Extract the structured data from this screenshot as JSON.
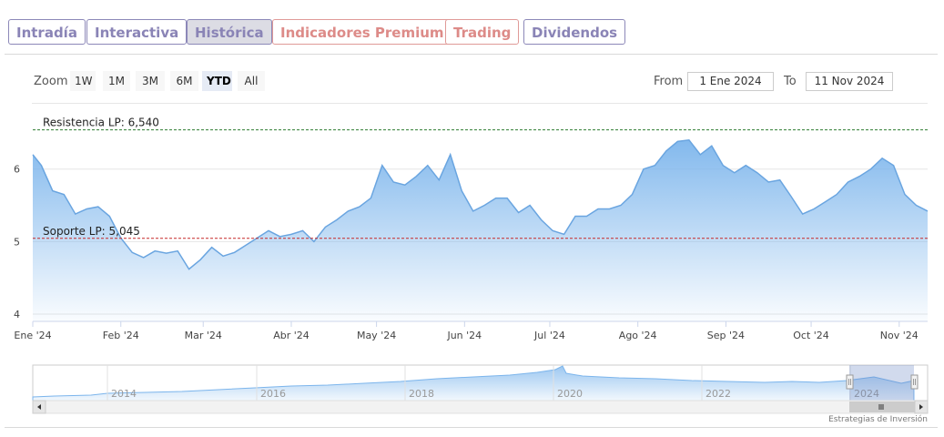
{
  "tabs": [
    {
      "label": "Intradía",
      "style": "normal"
    },
    {
      "label": "Interactiva",
      "style": "normal"
    },
    {
      "label": "Histórica",
      "style": "active"
    },
    {
      "label": "Indicadores Premium",
      "style": "premium"
    },
    {
      "label": "Trading",
      "style": "premium"
    },
    {
      "label": "Dividendos",
      "style": "normal"
    }
  ],
  "zoom": {
    "label": "Zoom",
    "buttons": [
      "1W",
      "1M",
      "3M",
      "6M",
      "YTD",
      "All"
    ],
    "selected": "YTD"
  },
  "range": {
    "from_label": "From",
    "from_value": "1 Ene 2024",
    "to_label": "To",
    "to_value": "11 Nov 2024"
  },
  "colors": {
    "accent": "#7cb5ec",
    "tab_text": "#8a84b6",
    "tab_premium": "#dd8b88",
    "resistance_line": "#2e7d32",
    "support_line": "#c62828"
  },
  "chart_data": {
    "type": "area",
    "ylim": [
      3.9,
      6.9
    ],
    "y_ticks": [
      "4",
      "5",
      "6"
    ],
    "y_tick_values": [
      4,
      5,
      6
    ],
    "x_tick_labels": [
      "Ene '24",
      "Feb '24",
      "Mar '24",
      "Abr '24",
      "May '24",
      "Jun '24",
      "Jul '24",
      "Ago '24",
      "Sep '24",
      "Oct '24",
      "Nov '24"
    ],
    "x": [
      "2024-01-01",
      "2024-01-04",
      "2024-01-08",
      "2024-01-12",
      "2024-01-16",
      "2024-01-20",
      "2024-01-24",
      "2024-01-28",
      "2024-02-01",
      "2024-02-05",
      "2024-02-09",
      "2024-02-13",
      "2024-02-17",
      "2024-02-21",
      "2024-02-25",
      "2024-02-29",
      "2024-03-04",
      "2024-03-08",
      "2024-03-12",
      "2024-03-16",
      "2024-03-20",
      "2024-03-24",
      "2024-03-28",
      "2024-04-01",
      "2024-04-05",
      "2024-04-09",
      "2024-04-13",
      "2024-04-17",
      "2024-04-21",
      "2024-04-25",
      "2024-04-29",
      "2024-05-03",
      "2024-05-07",
      "2024-05-11",
      "2024-05-15",
      "2024-05-19",
      "2024-05-23",
      "2024-05-27",
      "2024-05-31",
      "2024-06-04",
      "2024-06-08",
      "2024-06-12",
      "2024-06-16",
      "2024-06-20",
      "2024-06-24",
      "2024-06-28",
      "2024-07-02",
      "2024-07-06",
      "2024-07-10",
      "2024-07-14",
      "2024-07-18",
      "2024-07-22",
      "2024-07-26",
      "2024-07-30",
      "2024-08-03",
      "2024-08-07",
      "2024-08-11",
      "2024-08-15",
      "2024-08-19",
      "2024-08-23",
      "2024-08-27",
      "2024-08-31",
      "2024-09-04",
      "2024-09-08",
      "2024-09-12",
      "2024-09-16",
      "2024-09-20",
      "2024-09-24",
      "2024-09-28",
      "2024-10-02",
      "2024-10-06",
      "2024-10-10",
      "2024-10-14",
      "2024-10-18",
      "2024-10-22",
      "2024-10-26",
      "2024-10-30",
      "2024-11-03",
      "2024-11-07",
      "2024-11-11"
    ],
    "values": [
      6.2,
      6.05,
      5.7,
      5.65,
      5.38,
      5.45,
      5.48,
      5.35,
      5.05,
      4.85,
      4.78,
      4.87,
      4.84,
      4.87,
      4.62,
      4.75,
      4.92,
      4.8,
      4.85,
      4.95,
      5.05,
      5.15,
      5.07,
      5.1,
      5.15,
      5.0,
      5.2,
      5.3,
      5.42,
      5.48,
      5.6,
      6.05,
      5.82,
      5.78,
      5.9,
      6.05,
      5.85,
      6.2,
      5.7,
      5.42,
      5.5,
      5.6,
      5.6,
      5.4,
      5.5,
      5.3,
      5.15,
      5.1,
      5.35,
      5.35,
      5.45,
      5.45,
      5.5,
      5.65,
      6.0,
      6.05,
      6.25,
      6.38,
      6.4,
      6.2,
      6.32,
      6.05,
      5.95,
      6.05,
      5.95,
      5.82,
      5.85,
      5.62,
      5.38,
      5.45,
      5.55,
      5.65,
      5.82,
      5.9,
      6.0,
      6.15,
      6.05,
      5.65,
      5.5,
      5.42
    ],
    "resistance": {
      "label": "Resistencia LP: 6,540",
      "value": 6.54
    },
    "support": {
      "label": "Soporte LP: 5,045",
      "value": 5.045
    },
    "navigator": {
      "year_labels": [
        "2014",
        "2016",
        "2018",
        "2020",
        "2022",
        "2024"
      ]
    }
  },
  "credit": "Estrategias de Inversión"
}
